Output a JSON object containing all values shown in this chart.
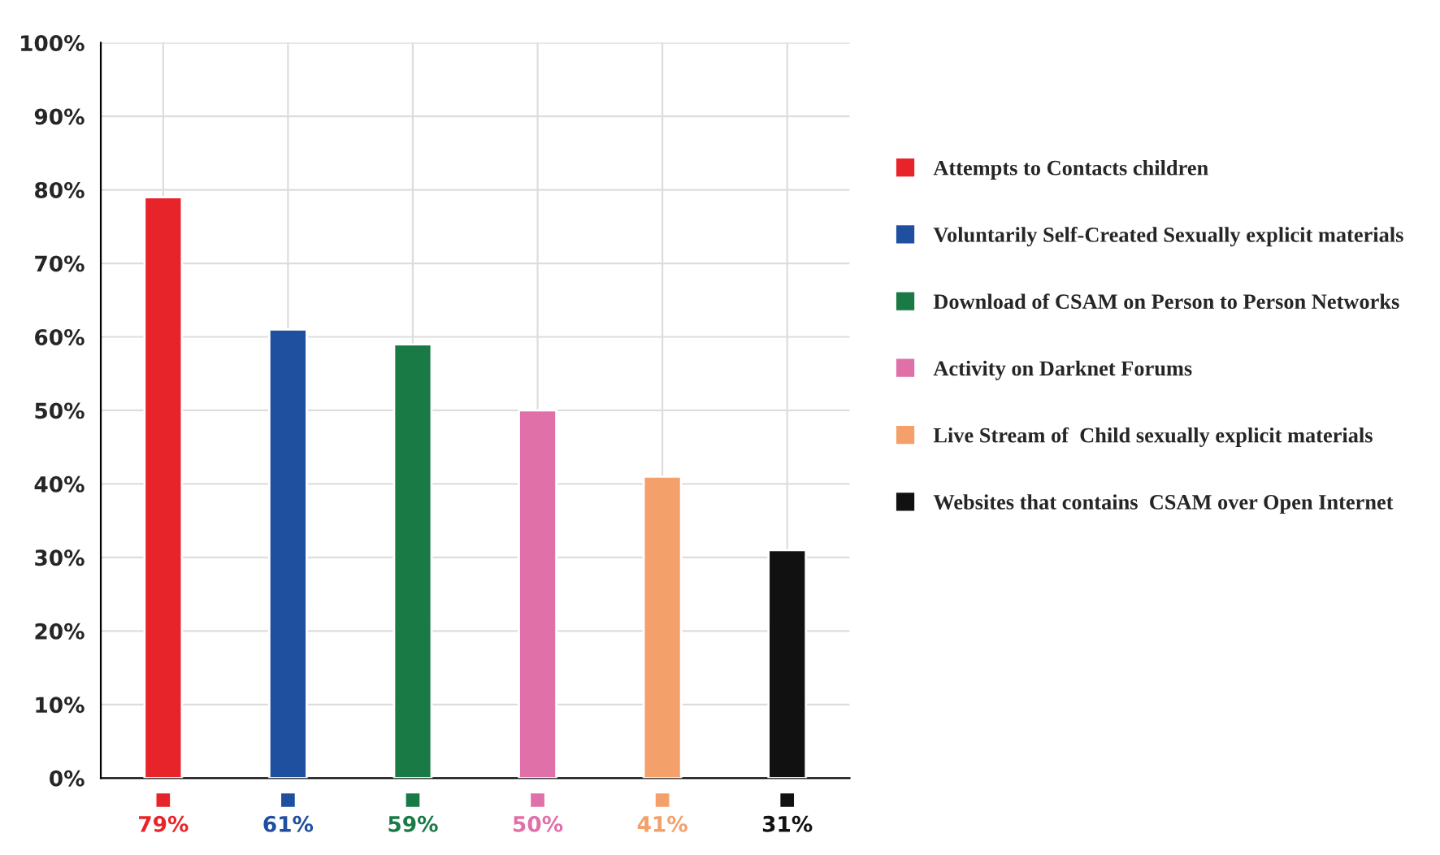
{
  "chart_data": {
    "type": "bar",
    "categories": [
      null,
      null,
      null,
      null,
      null,
      null
    ],
    "series": [
      {
        "name": "Attempts to Contacts children",
        "color": "#e8242b",
        "values": [
          79,
          null,
          null,
          null,
          null,
          null
        ],
        "value_labels": [
          "79%",
          null,
          null,
          null,
          null,
          null
        ]
      },
      {
        "name": "Voluntarily Self-Created Sexually explicit materials",
        "color": "#1f4f9f",
        "values": [
          null,
          61,
          null,
          null,
          null,
          null
        ],
        "value_labels": [
          null,
          "61%",
          null,
          null,
          null,
          null
        ]
      },
      {
        "name": "Download of CSAM on Person to Person Networks",
        "color": "#1a7a45",
        "values": [
          null,
          null,
          59,
          null,
          null,
          null
        ],
        "value_labels": [
          null,
          null,
          "59%",
          null,
          null,
          null
        ]
      },
      {
        "name": "Activity on Darknet Forums",
        "color": "#e070a8",
        "values": [
          null,
          null,
          null,
          50,
          null,
          null
        ],
        "value_labels": [
          null,
          null,
          null,
          "50%",
          null,
          null
        ]
      },
      {
        "name": "Live Stream of  Child sexually explicit materials",
        "color": "#f4a06a",
        "values": [
          null,
          null,
          null,
          null,
          41,
          null
        ],
        "value_labels": [
          null,
          null,
          null,
          null,
          "41%",
          null
        ]
      },
      {
        "name": "Websites that contains  CSAM over Open Internet",
        "color": "#111111",
        "values": [
          null,
          null,
          null,
          null,
          null,
          31
        ],
        "value_labels": [
          null,
          null,
          null,
          null,
          null,
          "31%"
        ]
      }
    ],
    "ylim": [
      0,
      100
    ],
    "yticks": [
      {
        "value": 0,
        "label": "0%"
      },
      {
        "value": 10,
        "label": "10%"
      },
      {
        "value": 20,
        "label": "20%"
      },
      {
        "value": 30,
        "label": "30%"
      },
      {
        "value": 40,
        "label": "40%"
      },
      {
        "value": 50,
        "label": "50%"
      },
      {
        "value": 60,
        "label": "60%"
      },
      {
        "value": 70,
        "label": "70%"
      },
      {
        "value": 80,
        "label": "80%"
      },
      {
        "value": 90,
        "label": "90%"
      },
      {
        "value": 100,
        "label": "100%"
      }
    ],
    "grid": true,
    "legend": "right",
    "tick_labels": "y"
  }
}
